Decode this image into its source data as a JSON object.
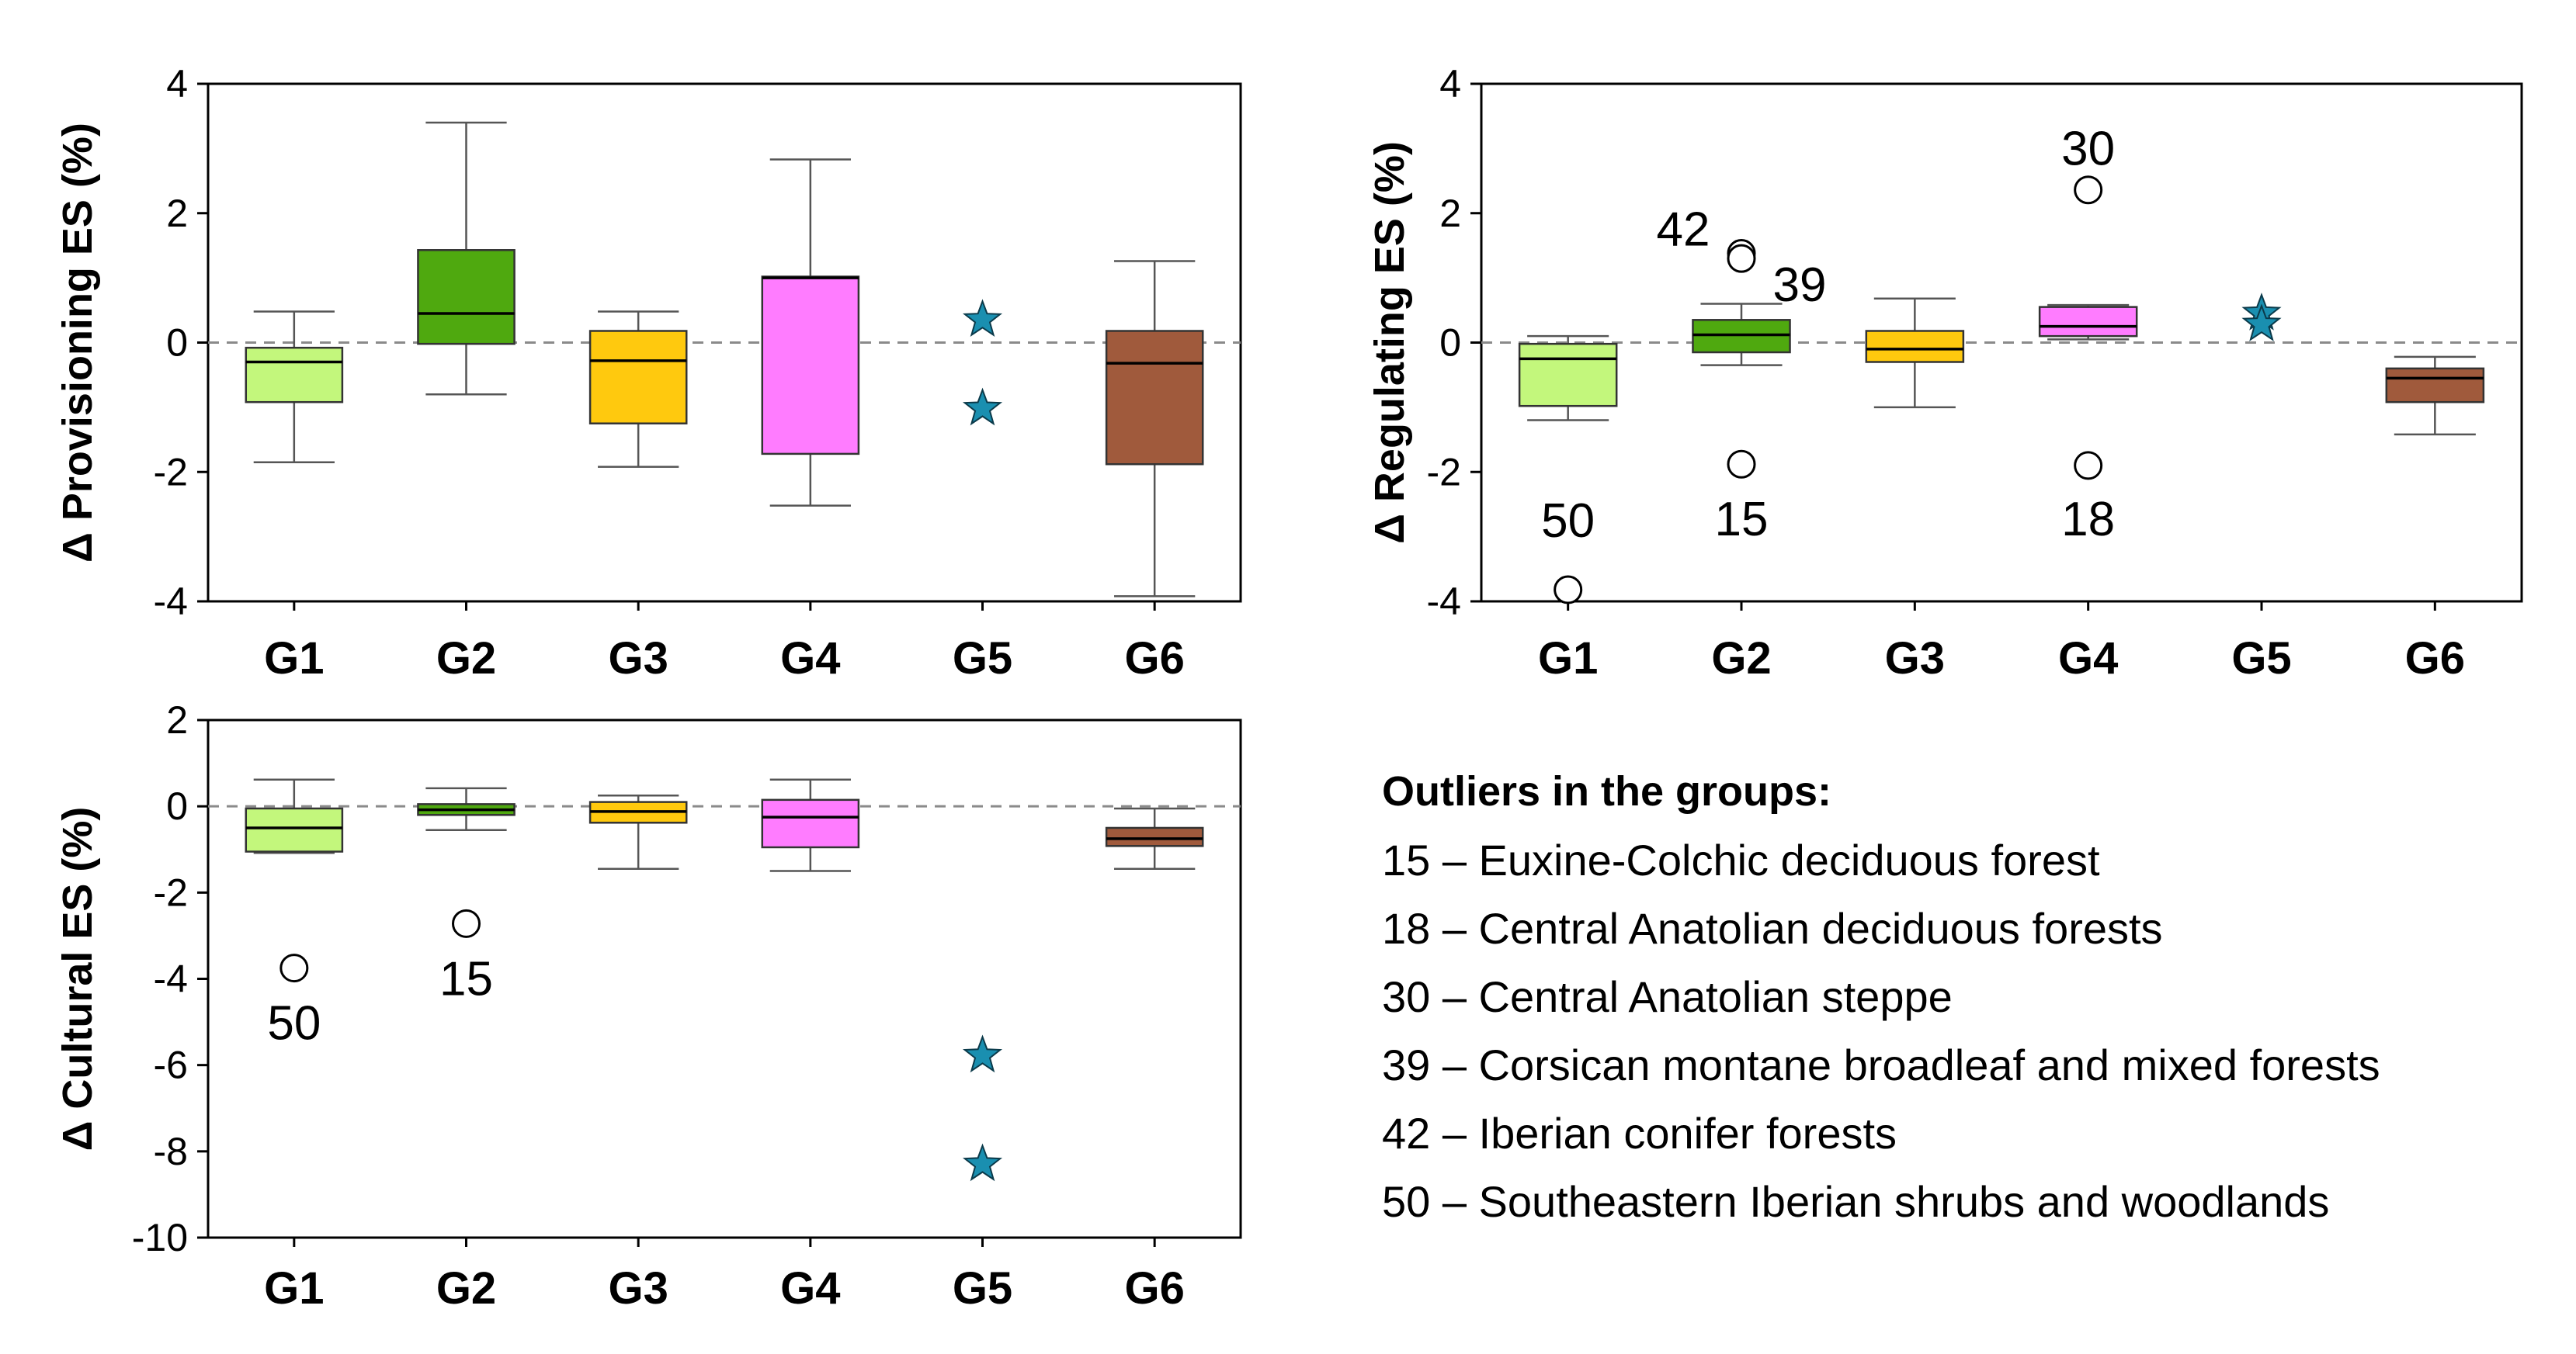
{
  "colors": {
    "G1": "#c3f77c",
    "G2": "#4fa90f",
    "G3": "#ffc90e",
    "G4": "#ff7cff",
    "G5": "#1a8fb0",
    "G6": "#a05a3c"
  },
  "chart_data": [
    {
      "type": "box",
      "id": "provisioning",
      "ylabel": "Δ Provisioning ES (%)",
      "ylim": [
        -4,
        4
      ],
      "yticks": [
        -4,
        -2,
        0,
        2,
        4
      ],
      "categories": [
        "G1",
        "G2",
        "G3",
        "G4",
        "G5",
        "G6"
      ],
      "reference_line": 0,
      "boxes": [
        {
          "group": "G1",
          "min": -1.85,
          "q1": -0.92,
          "median": -0.3,
          "q3": -0.08,
          "max": 0.48,
          "outliers": [],
          "stars": []
        },
        {
          "group": "G2",
          "min": -0.8,
          "q1": -0.02,
          "median": 0.45,
          "q3": 1.43,
          "max": 3.4,
          "outliers": [],
          "stars": []
        },
        {
          "group": "G3",
          "min": -1.92,
          "q1": -1.25,
          "median": -0.28,
          "q3": 0.18,
          "max": 0.48,
          "outliers": [],
          "stars": []
        },
        {
          "group": "G4",
          "min": -2.52,
          "q1": -1.72,
          "median": 1.0,
          "q3": 1.02,
          "max": 2.83,
          "outliers": [],
          "stars": []
        },
        {
          "group": "G5",
          "stars": [
            0.35,
            -1.02
          ],
          "outliers": []
        },
        {
          "group": "G6",
          "min": -3.92,
          "q1": -1.88,
          "median": -0.32,
          "q3": 0.18,
          "max": 1.26,
          "outliers": [],
          "stars": []
        }
      ]
    },
    {
      "type": "box",
      "id": "regulating",
      "ylabel": "Δ Regulating ES (%)",
      "ylim": [
        -4,
        4
      ],
      "yticks": [
        -4,
        -2,
        0,
        2,
        4
      ],
      "categories": [
        "G1",
        "G2",
        "G3",
        "G4",
        "G5",
        "G6"
      ],
      "reference_line": 0,
      "boxes": [
        {
          "group": "G1",
          "min": -1.2,
          "q1": -0.98,
          "median": -0.25,
          "q3": -0.02,
          "max": 0.1,
          "outliers": [
            {
              "value": -3.82,
              "label": "50"
            }
          ],
          "stars": []
        },
        {
          "group": "G2",
          "min": -0.35,
          "q1": -0.15,
          "median": 0.12,
          "q3": 0.35,
          "max": 0.6,
          "outliers": [
            {
              "value": 1.38,
              "label": "42"
            },
            {
              "value": 1.3,
              "label": "39"
            },
            {
              "value": -1.88,
              "label": "15"
            }
          ],
          "stars": []
        },
        {
          "group": "G3",
          "min": -1.0,
          "q1": -0.3,
          "median": -0.1,
          "q3": 0.18,
          "max": 0.68,
          "outliers": [],
          "stars": []
        },
        {
          "group": "G4",
          "min": 0.05,
          "q1": 0.1,
          "median": 0.25,
          "q3": 0.55,
          "max": 0.58,
          "outliers": [
            {
              "value": 2.36,
              "label": "30"
            },
            {
              "value": -1.9,
              "label": "18"
            }
          ],
          "stars": []
        },
        {
          "group": "G5",
          "stars": [
            0.45,
            0.28
          ],
          "outliers": []
        },
        {
          "group": "G6",
          "min": -1.42,
          "q1": -0.92,
          "median": -0.55,
          "q3": -0.4,
          "max": -0.22,
          "outliers": [],
          "stars": []
        }
      ]
    },
    {
      "type": "box",
      "id": "cultural",
      "ylabel": "Δ Cultural ES (%)",
      "ylim": [
        -10,
        2
      ],
      "yticks": [
        -10,
        -8,
        -6,
        -4,
        -2,
        0,
        2
      ],
      "categories": [
        "G1",
        "G2",
        "G3",
        "G4",
        "G5",
        "G6"
      ],
      "reference_line": 0,
      "boxes": [
        {
          "group": "G1",
          "min": -1.08,
          "q1": -1.05,
          "median": -0.5,
          "q3": -0.05,
          "max": 0.62,
          "outliers": [
            {
              "value": -3.75,
              "label": "50"
            }
          ],
          "stars": []
        },
        {
          "group": "G2",
          "min": -0.55,
          "q1": -0.2,
          "median": -0.08,
          "q3": 0.05,
          "max": 0.42,
          "outliers": [
            {
              "value": -2.72,
              "label": "15"
            }
          ],
          "stars": []
        },
        {
          "group": "G3",
          "min": -1.45,
          "q1": -0.38,
          "median": -0.12,
          "q3": 0.1,
          "max": 0.25,
          "outliers": [],
          "stars": []
        },
        {
          "group": "G4",
          "min": -1.5,
          "q1": -0.95,
          "median": -0.25,
          "q3": 0.15,
          "max": 0.62,
          "outliers": [],
          "stars": []
        },
        {
          "group": "G5",
          "stars": [
            -5.78,
            -8.3
          ],
          "outliers": []
        },
        {
          "group": "G6",
          "min": -1.45,
          "q1": -0.92,
          "median": -0.75,
          "q3": -0.5,
          "max": -0.05,
          "outliers": [],
          "stars": []
        }
      ]
    }
  ],
  "legend": {
    "title": "Outliers in the groups:",
    "items": [
      "15 – Euxine-Colchic deciduous forest",
      "18 – Central Anatolian deciduous forests",
      "30 – Central Anatolian steppe",
      "39 – Corsican montane broadleaf and mixed forests",
      "42 – Iberian conifer forests",
      "50 – Southeastern Iberian shrubs and woodlands"
    ]
  }
}
